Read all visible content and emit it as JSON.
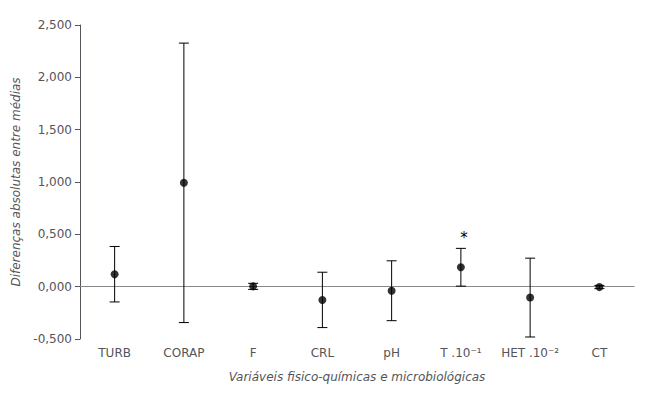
{
  "chart_data": {
    "type": "errorbar",
    "categories": [
      "TURB",
      "CORAP",
      "F",
      "CRL",
      "pH",
      "T .10⁻¹",
      "HET .10⁻²",
      "CT"
    ],
    "values": [
      0.119,
      0.992,
      0.003,
      -0.127,
      -0.039,
      0.1855,
      -0.10424,
      -0.004
    ],
    "lower": [
      -0.146,
      -0.343,
      -0.026,
      -0.391,
      -0.325,
      0.0052,
      -0.48075,
      -0.019
    ],
    "upper": [
      0.384,
      2.327,
      0.032,
      0.138,
      0.247,
      0.3659,
      0.27228,
      0.012
    ],
    "color": "#000000",
    "marker": "circle",
    "xlabel": "Variáveis fisico-químicas e microbiológicas",
    "ylabel": "Diferenças absolutas entre médias",
    "ylim": [
      -0.5,
      2.5
    ],
    "yticks": [
      {
        "value": -0.5,
        "label": "-0,500"
      },
      {
        "value": 0,
        "label": "0,000"
      },
      {
        "value": 0.5,
        "label": "0,500"
      },
      {
        "value": 1,
        "label": "1,000"
      },
      {
        "value": 1.5,
        "label": "1,500"
      },
      {
        "value": 2,
        "label": "2,000"
      },
      {
        "value": 2.5,
        "label": "2,500"
      }
    ],
    "hline": {
      "value": 0,
      "color": "#888888"
    },
    "annotations": [
      {
        "text": "*",
        "x": "T .10⁻¹",
        "y": 0.3659
      }
    ],
    "grid": false
  }
}
